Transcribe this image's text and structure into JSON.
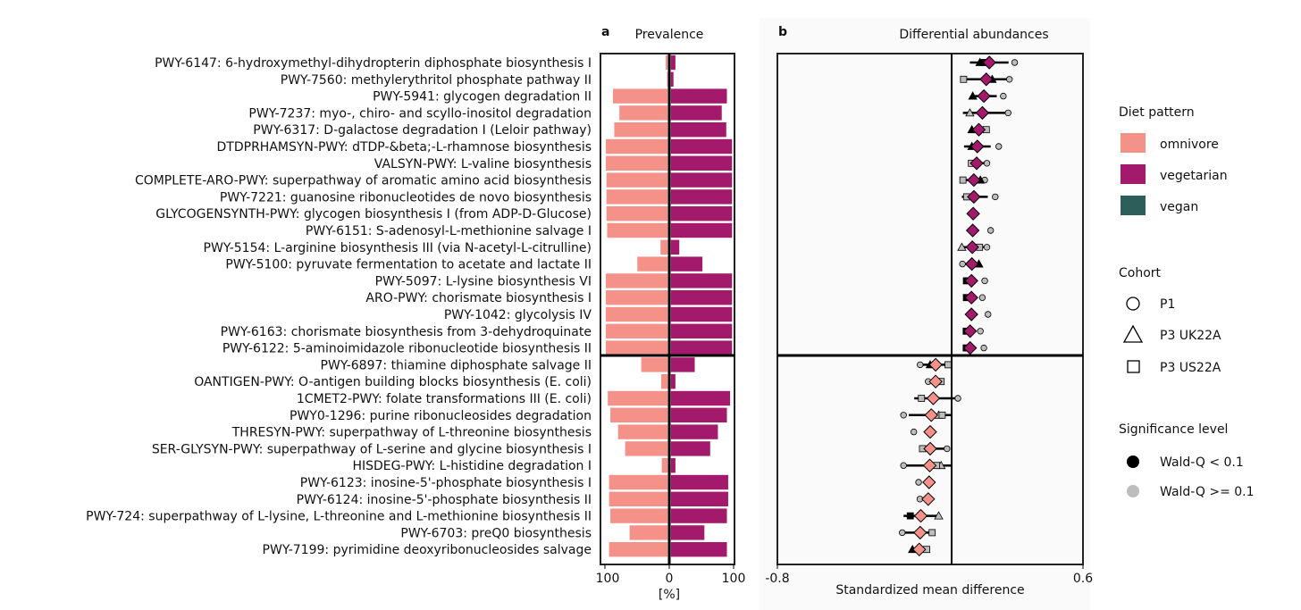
{
  "chart_data": [
    {
      "panel": "a",
      "type": "bar",
      "title": "Prevalence",
      "xlabel": "[%]",
      "xticks": [
        "100",
        "0",
        "100"
      ],
      "xlim": [
        -100,
        100
      ],
      "series": [
        {
          "name": "omnivore",
          "side": "left"
        },
        {
          "name": "vegetarian",
          "side": "right"
        }
      ]
    },
    {
      "panel": "b",
      "type": "scatter",
      "title": "Differential abundances",
      "xlabel": "Standardized mean difference",
      "xticks": [
        "-0.8",
        "0.6"
      ],
      "xlim": [
        -0.8,
        0.6
      ]
    }
  ],
  "rows": [
    {
      "label": "PWY-6147: 6-hydroxymethyl-dihydropterin diphosphate biosynthesis I",
      "group": "vegetarian",
      "omnivore": 6,
      "vegetarian": 10,
      "smd": 0.171,
      "ci": [
        0.082,
        0.259
      ],
      "points": [
        {
          "c": "P1",
          "v": 0.287,
          "sig": false
        },
        {
          "c": "P3 UK22A",
          "v": 0.128,
          "sig": true
        },
        {
          "c": "P3 US22A",
          "v": 0.143,
          "sig": true
        }
      ]
    },
    {
      "label": "PWY-7560: methylerythritol phosphate pathway II",
      "group": "vegetarian",
      "omnivore": 4,
      "vegetarian": 7,
      "smd": 0.157,
      "ci": [
        0.055,
        0.263
      ],
      "points": [
        {
          "c": "P1",
          "v": 0.263,
          "sig": false
        },
        {
          "c": "P3 UK22A",
          "v": 0.184,
          "sig": true
        },
        {
          "c": "P3 US22A",
          "v": 0.053,
          "sig": false
        }
      ]
    },
    {
      "label": "PWY-5941: glycogen degradation II",
      "group": "vegetarian",
      "omnivore": 88,
      "vegetarian": 90,
      "smd": 0.146,
      "ci": [
        0.086,
        0.205
      ],
      "points": [
        {
          "c": "P1",
          "v": 0.235,
          "sig": false
        },
        {
          "c": "P3 UK22A",
          "v": 0.095,
          "sig": true
        }
      ]
    },
    {
      "label": "PWY-7237: myo-, chiro- and scyllo-inositol degradation",
      "group": "vegetarian",
      "omnivore": 78,
      "vegetarian": 82,
      "smd": 0.139,
      "ci": [
        0.05,
        0.255
      ],
      "points": [
        {
          "c": "P1",
          "v": 0.257,
          "sig": false
        },
        {
          "c": "P3 UK22A",
          "v": 0.082,
          "sig": false
        }
      ]
    },
    {
      "label": "PWY-6317: D-galactose degradation I (Leloir pathway)",
      "group": "vegetarian",
      "omnivore": 86,
      "vegetarian": 89,
      "smd": 0.123,
      "ci": [
        0.086,
        0.157
      ],
      "points": [
        {
          "c": "P3 UK22A",
          "v": 0.091,
          "sig": true
        },
        {
          "c": "P3 US22A",
          "v": 0.157,
          "sig": false
        }
      ]
    },
    {
      "label": "DTDPRHAMSYN-PWY: dTDP-&beta;-L-rhamnose biosynthesis",
      "group": "vegetarian",
      "omnivore": 99,
      "vegetarian": 98,
      "smd": 0.116,
      "ci": [
        0.055,
        0.177
      ],
      "points": [
        {
          "c": "P1",
          "v": 0.214,
          "sig": false
        },
        {
          "c": "P3 UK22A",
          "v": 0.091,
          "sig": true
        }
      ]
    },
    {
      "label": "VALSYN-PWY: L-valine biosynthesis",
      "group": "vegetarian",
      "omnivore": 99,
      "vegetarian": 98,
      "smd": 0.113,
      "ci": [
        0.086,
        0.16
      ],
      "points": [
        {
          "c": "P1",
          "v": 0.16,
          "sig": false
        },
        {
          "c": "P3 US22A",
          "v": 0.089,
          "sig": false
        }
      ]
    },
    {
      "label": "COMPLETE-ARO-PWY: superpathway of aromatic amino acid biosynthesis",
      "group": "vegetarian",
      "omnivore": 98,
      "vegetarian": 98,
      "smd": 0.1,
      "ci": [
        0.05,
        0.15
      ],
      "points": [
        {
          "c": "P1",
          "v": 0.15,
          "sig": false
        },
        {
          "c": "P3 UK22A",
          "v": 0.13,
          "sig": true
        },
        {
          "c": "P3 US22A",
          "v": 0.05,
          "sig": false
        }
      ]
    },
    {
      "label": "PWY-7221: guanosine ribonucleotides de novo biosynthesis",
      "group": "vegetarian",
      "omnivore": 98,
      "vegetarian": 98,
      "smd": 0.1,
      "ci": [
        0.045,
        0.164
      ],
      "points": [
        {
          "c": "P1",
          "v": 0.198,
          "sig": false
        },
        {
          "c": "P3 US22A",
          "v": 0.067,
          "sig": false
        }
      ]
    },
    {
      "label": "GLYCOGENSYNTH-PWY: glycogen biosynthesis I (from ADP-D-Glucose)",
      "group": "vegetarian",
      "omnivore": 98,
      "vegetarian": 98,
      "smd": 0.097,
      "ci": null,
      "points": []
    },
    {
      "label": "PWY-6151: S-adenosyl-L-methionine salvage I",
      "group": "vegetarian",
      "omnivore": 97,
      "vegetarian": 98,
      "smd": 0.095,
      "ci": null,
      "points": [
        {
          "c": "P1",
          "v": 0.177,
          "sig": false
        }
      ]
    },
    {
      "label": "PWY-5154: L-arginine biosynthesis III (via N-acetyl-L-citrulline)",
      "group": "vegetarian",
      "omnivore": 14,
      "vegetarian": 16,
      "smd": 0.093,
      "ci": [
        0.045,
        0.16
      ],
      "points": [
        {
          "c": "P1",
          "v": 0.16,
          "sig": false
        },
        {
          "c": "P3 UK22A",
          "v": 0.045,
          "sig": false
        },
        {
          "c": "P3 US22A",
          "v": 0.126,
          "sig": false
        }
      ]
    },
    {
      "label": "PWY-5100: pyruvate fermentation to acetate and lactate II",
      "group": "vegetarian",
      "omnivore": 50,
      "vegetarian": 52,
      "smd": 0.091,
      "ci": [
        0.048,
        0.123
      ],
      "points": [
        {
          "c": "P1",
          "v": 0.048,
          "sig": false
        },
        {
          "c": "P3 UK22A",
          "v": 0.123,
          "sig": true
        }
      ]
    },
    {
      "label": "PWY-5097: L-lysine biosynthesis VI",
      "group": "vegetarian",
      "omnivore": 99,
      "vegetarian": 98,
      "smd": 0.089,
      "ci": null,
      "points": [
        {
          "c": "P1",
          "v": 0.15,
          "sig": false
        },
        {
          "c": "P3 US22A",
          "v": 0.066,
          "sig": true
        }
      ]
    },
    {
      "label": "ARO-PWY: chorismate biosynthesis I",
      "group": "vegetarian",
      "omnivore": 99,
      "vegetarian": 98,
      "smd": 0.089,
      "ci": null,
      "points": [
        {
          "c": "P1",
          "v": 0.139,
          "sig": false
        },
        {
          "c": "P3 US22A",
          "v": 0.066,
          "sig": true
        }
      ]
    },
    {
      "label": "PWY-1042: glycolysis IV",
      "group": "vegetarian",
      "omnivore": 99,
      "vegetarian": 98,
      "smd": 0.089,
      "ci": null,
      "points": [
        {
          "c": "P1",
          "v": 0.165,
          "sig": false
        }
      ]
    },
    {
      "label": "PWY-6163: chorismate biosynthesis from 3-dehydroquinate",
      "group": "vegetarian",
      "omnivore": 99,
      "vegetarian": 98,
      "smd": 0.083,
      "ci": null,
      "points": [
        {
          "c": "P1",
          "v": 0.13,
          "sig": false
        },
        {
          "c": "P3 US22A",
          "v": 0.065,
          "sig": true
        }
      ]
    },
    {
      "label": "PWY-6122: 5-aminoimidazole ribonucleotide biosynthesis II",
      "group": "vegetarian",
      "omnivore": 99,
      "vegetarian": 98,
      "smd": 0.083,
      "ci": null,
      "points": [
        {
          "c": "P1",
          "v": 0.146,
          "sig": false
        },
        {
          "c": "P3 US22A",
          "v": 0.065,
          "sig": true
        }
      ]
    },
    {
      "label": "PWY-6897: thiamine diphosphate salvage II",
      "group": "omnivore",
      "omnivore": 44,
      "vegetarian": 40,
      "smd": -0.075,
      "ci": [
        -0.146,
        -0.018
      ],
      "points": [
        {
          "c": "P1",
          "v": -0.146,
          "sig": false
        },
        {
          "c": "P3 UK22A",
          "v": -0.1,
          "sig": true
        },
        {
          "c": "P3 US22A",
          "v": -0.018,
          "sig": false
        }
      ]
    },
    {
      "label": "OANTIGEN-PWY: O-antigen building blocks biosynthesis (E. coli)",
      "group": "omnivore",
      "omnivore": 13,
      "vegetarian": 10,
      "smd": -0.075,
      "ci": null,
      "points": [
        {
          "c": "P1",
          "v": -0.109,
          "sig": false
        },
        {
          "c": "P3 US22A",
          "v": -0.05,
          "sig": false
        }
      ]
    },
    {
      "label": "1CMET2-PWY: folate transformations III (E. coli)",
      "group": "omnivore",
      "omnivore": 96,
      "vegetarian": 95,
      "smd": -0.086,
      "ci": [
        -0.173,
        0.027
      ],
      "points": [
        {
          "c": "P1",
          "v": 0.027,
          "sig": false
        },
        {
          "c": "P3 US22A",
          "v": -0.14,
          "sig": false
        }
      ]
    },
    {
      "label": "PWY0-1296: purine ribonucleosides degradation",
      "group": "omnivore",
      "omnivore": 92,
      "vegetarian": 90,
      "smd": -0.095,
      "ci": [
        -0.198,
        0.0
      ],
      "points": [
        {
          "c": "P1",
          "v": -0.222,
          "sig": false
        },
        {
          "c": "P3 UK22A",
          "v": -0.061,
          "sig": false
        },
        {
          "c": "P3 US22A",
          "v": -0.045,
          "sig": false
        }
      ]
    },
    {
      "label": "THRESYN-PWY: superpathway of L-threonine biosynthesis",
      "group": "omnivore",
      "omnivore": 80,
      "vegetarian": 76,
      "smd": -0.1,
      "ci": null,
      "points": [
        {
          "c": "P1",
          "v": -0.175,
          "sig": false
        }
      ]
    },
    {
      "label": "SER-GLYSYN-PWY: superpathway of L-serine and glycine biosynthesis I",
      "group": "omnivore",
      "omnivore": 69,
      "vegetarian": 64,
      "smd": -0.1,
      "ci": [
        -0.143,
        -0.023
      ],
      "points": [
        {
          "c": "P1",
          "v": -0.023,
          "sig": false
        },
        {
          "c": "P3 US22A",
          "v": -0.135,
          "sig": false
        }
      ]
    },
    {
      "label": "HISDEG-PWY: L-histidine degradation I",
      "group": "omnivore",
      "omnivore": 12,
      "vegetarian": 10,
      "smd": -0.102,
      "ci": [
        -0.222,
        0.0
      ],
      "points": [
        {
          "c": "P1",
          "v": -0.222,
          "sig": false
        },
        {
          "c": "P3 UK22A",
          "v": -0.05,
          "sig": false
        },
        {
          "c": "P3 US22A",
          "v": -0.071,
          "sig": false
        }
      ]
    },
    {
      "label": "PWY-6123: inosine-5'-phosphate biosynthesis I",
      "group": "omnivore",
      "omnivore": 94,
      "vegetarian": 92,
      "smd": -0.105,
      "ci": null,
      "points": [
        {
          "c": "P1",
          "v": -0.153,
          "sig": false
        }
      ]
    },
    {
      "label": "PWY-6124: inosine-5'-phosphate biosynthesis II",
      "group": "omnivore",
      "omnivore": 94,
      "vegetarian": 92,
      "smd": -0.109,
      "ci": null,
      "points": [
        {
          "c": "P1",
          "v": -0.147,
          "sig": false
        }
      ]
    },
    {
      "label": "PWY-724: superpathway of L-lysine, L-threonine and L-methionine biosynthesis II",
      "group": "omnivore",
      "omnivore": 92,
      "vegetarian": 90,
      "smd": -0.143,
      "ci": [
        -0.222,
        -0.061
      ],
      "points": [
        {
          "c": "P3 UK22A",
          "v": -0.061,
          "sig": false
        },
        {
          "c": "P3 US22A",
          "v": -0.191,
          "sig": true
        }
      ]
    },
    {
      "label": "PWY-6703: preQ0 biosynthesis",
      "group": "omnivore",
      "omnivore": 62,
      "vegetarian": 55,
      "smd": -0.146,
      "ci": [
        -0.228,
        -0.091
      ],
      "points": [
        {
          "c": "P1",
          "v": -0.228,
          "sig": false
        },
        {
          "c": "P3 US22A",
          "v": -0.091,
          "sig": false
        }
      ]
    },
    {
      "label": "PWY-7199: pyrimidine deoxyribonucleosides salvage",
      "group": "omnivore",
      "omnivore": 94,
      "vegetarian": 90,
      "smd": -0.15,
      "ci": null,
      "points": [
        {
          "c": "P3 UK22A",
          "v": -0.181,
          "sig": true
        },
        {
          "c": "P3 US22A",
          "v": -0.116,
          "sig": false
        }
      ]
    }
  ],
  "panel_letters": {
    "a": "a",
    "b": "b"
  },
  "legend": {
    "diet_title": "Diet pattern",
    "diet": [
      {
        "label": "omnivore",
        "color": "#f4928a"
      },
      {
        "label": "vegetarian",
        "color": "#a3196b"
      },
      {
        "label": "vegan",
        "color": "#2e5e5a"
      }
    ],
    "cohort_title": "Cohort",
    "cohorts": [
      {
        "label": "P1",
        "marker": "circle"
      },
      {
        "label": "P3 UK22A",
        "marker": "triangle"
      },
      {
        "label": "P3 US22A",
        "marker": "square"
      }
    ],
    "sig_title": "Significance level",
    "sig": [
      {
        "label": "Wald-Q < 0.1",
        "color": "#000000"
      },
      {
        "label": "Wald-Q >= 0.1",
        "color": "#bdbdbd"
      }
    ]
  }
}
